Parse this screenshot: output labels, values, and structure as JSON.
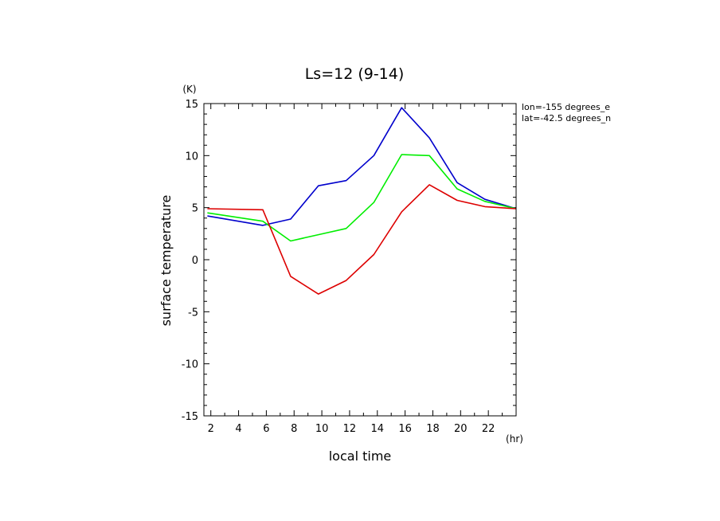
{
  "chart_data": {
    "type": "line",
    "title": "Ls=12 (9-14)",
    "xlabel": "local time",
    "ylabel": "surface temperature",
    "x_unit": "(hr)",
    "y_unit": "(K)",
    "xlim": [
      1.5,
      24.0
    ],
    "ylim": [
      -15,
      15
    ],
    "x_ticks": [
      2,
      4,
      6,
      8,
      10,
      12,
      14,
      16,
      18,
      20,
      22
    ],
    "y_ticks": [
      -15,
      -10,
      -5,
      0,
      5,
      10,
      15
    ],
    "x": [
      1.75,
      5.75,
      7.75,
      9.75,
      11.75,
      13.75,
      15.75,
      17.75,
      19.75,
      21.75,
      24.0
    ],
    "series": [
      {
        "color": "#0000cc",
        "values": [
          4.2,
          3.3,
          3.9,
          7.1,
          7.6,
          10.0,
          14.6,
          11.7,
          7.4,
          5.8,
          4.9
        ]
      },
      {
        "color": "#00ee00",
        "values": [
          4.5,
          3.7,
          1.8,
          2.4,
          3.0,
          5.5,
          10.1,
          10.0,
          6.8,
          5.6,
          4.9
        ]
      },
      {
        "color": "#dd0000",
        "values": [
          4.9,
          4.8,
          -1.6,
          -3.3,
          -2.0,
          0.5,
          4.6,
          7.2,
          5.7,
          5.1,
          4.9
        ]
      }
    ],
    "annotations": [
      "lon=-155 degrees_e",
      "lat=-42.5 degrees_n"
    ],
    "grid": false,
    "legend": "none"
  }
}
